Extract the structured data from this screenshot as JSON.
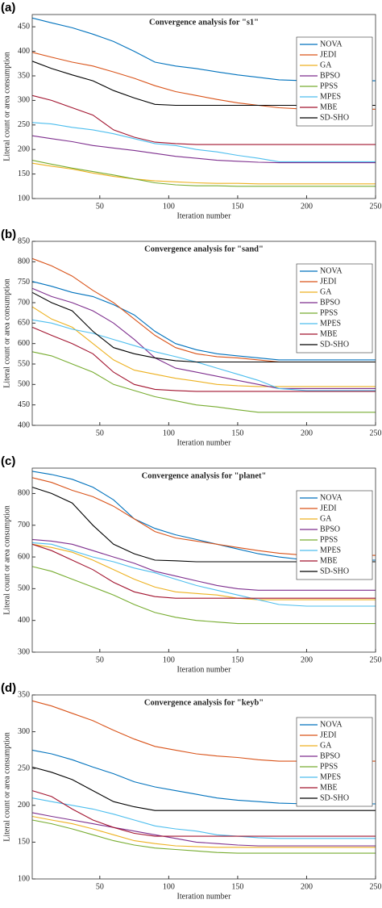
{
  "chart_data": [
    {
      "type": "line",
      "label": "(a)",
      "title": "Convergence analysis for \"s1\"",
      "xlabel": "Iteration number",
      "ylabel": "Literal count or area consumption",
      "x": [
        1,
        15,
        30,
        45,
        60,
        75,
        90,
        105,
        120,
        135,
        150,
        165,
        180,
        200,
        225,
        250
      ],
      "xlim": [
        1,
        250
      ],
      "xticks": [
        50,
        100,
        150,
        200,
        250
      ],
      "ylim": [
        100,
        475
      ],
      "yticks": [
        100,
        150,
        200,
        250,
        300,
        350,
        400,
        450
      ],
      "legend": "upper right",
      "series": [
        {
          "name": "NOVA",
          "color": "#0072BD",
          "values": [
            468,
            458,
            448,
            435,
            420,
            400,
            378,
            370,
            365,
            358,
            352,
            347,
            342,
            340,
            340,
            340
          ]
        },
        {
          "name": "JEDI",
          "color": "#D95319",
          "values": [
            398,
            388,
            378,
            370,
            358,
            345,
            330,
            318,
            310,
            302,
            295,
            290,
            285,
            282,
            282,
            282
          ]
        },
        {
          "name": "GA",
          "color": "#EDB120",
          "values": [
            172,
            166,
            160,
            152,
            145,
            140,
            136,
            134,
            132,
            131,
            131,
            130,
            130,
            130,
            130,
            130
          ]
        },
        {
          "name": "BPSO",
          "color": "#7E2F8E",
          "values": [
            228,
            222,
            216,
            208,
            203,
            198,
            192,
            186,
            182,
            178,
            176,
            174,
            173,
            173,
            173,
            173
          ]
        },
        {
          "name": "PPSS",
          "color": "#77AC30",
          "values": [
            178,
            170,
            162,
            155,
            148,
            140,
            132,
            128,
            126,
            126,
            125,
            125,
            125,
            125,
            125,
            125
          ]
        },
        {
          "name": "MPES",
          "color": "#4DBEEE",
          "values": [
            255,
            252,
            245,
            240,
            232,
            222,
            212,
            208,
            200,
            195,
            188,
            182,
            175,
            175,
            175,
            175
          ]
        },
        {
          "name": "MBE",
          "color": "#A2142F",
          "values": [
            310,
            300,
            285,
            270,
            240,
            225,
            215,
            212,
            210,
            210,
            210,
            210,
            210,
            210,
            210,
            210
          ]
        },
        {
          "name": "SD-SHO",
          "color": "#000000",
          "values": [
            380,
            365,
            352,
            340,
            320,
            305,
            292,
            290,
            290,
            290,
            290,
            290,
            290,
            290,
            290,
            290
          ]
        }
      ]
    },
    {
      "type": "line",
      "label": "(b)",
      "title": "Convergence analysis for \"sand\"",
      "xlabel": "Iteration number",
      "ylabel": "Literal count or area consumption",
      "x": [
        1,
        15,
        30,
        45,
        60,
        75,
        90,
        105,
        120,
        135,
        150,
        165,
        180,
        200,
        225,
        250
      ],
      "xlim": [
        1,
        250
      ],
      "xticks": [
        50,
        100,
        150,
        200,
        250
      ],
      "ylim": [
        400,
        850
      ],
      "yticks": [
        400,
        450,
        500,
        550,
        600,
        650,
        700,
        750,
        800,
        850
      ],
      "legend": "upper right",
      "series": [
        {
          "name": "NOVA",
          "color": "#0072BD",
          "values": [
            752,
            740,
            725,
            715,
            695,
            670,
            630,
            600,
            585,
            575,
            570,
            565,
            560,
            560,
            560,
            560
          ]
        },
        {
          "name": "JEDI",
          "color": "#D95319",
          "values": [
            808,
            790,
            765,
            730,
            700,
            660,
            620,
            590,
            575,
            568,
            565,
            560,
            555,
            555,
            555,
            555
          ]
        },
        {
          "name": "GA",
          "color": "#EDB120",
          "values": [
            690,
            660,
            640,
            600,
            560,
            535,
            525,
            515,
            508,
            500,
            497,
            495,
            495,
            495,
            495,
            495
          ]
        },
        {
          "name": "BPSO",
          "color": "#7E2F8E",
          "values": [
            735,
            715,
            700,
            680,
            650,
            610,
            565,
            540,
            530,
            520,
            510,
            500,
            490,
            490,
            490,
            490
          ]
        },
        {
          "name": "PPSS",
          "color": "#77AC30",
          "values": [
            580,
            570,
            550,
            530,
            500,
            485,
            470,
            460,
            450,
            445,
            438,
            432,
            432,
            432,
            432,
            432
          ]
        },
        {
          "name": "MPES",
          "color": "#4DBEEE",
          "values": [
            658,
            650,
            635,
            625,
            610,
            595,
            580,
            568,
            555,
            540,
            525,
            510,
            490,
            485,
            485,
            485
          ]
        },
        {
          "name": "MBE",
          "color": "#A2142F",
          "values": [
            640,
            620,
            600,
            575,
            530,
            500,
            488,
            485,
            483,
            483,
            483,
            483,
            483,
            483,
            483,
            483
          ]
        },
        {
          "name": "SD-SHO",
          "color": "#000000",
          "values": [
            725,
            700,
            680,
            630,
            590,
            575,
            565,
            558,
            555,
            555,
            555,
            555,
            555,
            555,
            555,
            555
          ]
        }
      ]
    },
    {
      "type": "line",
      "label": "(c)",
      "title": "Convergence analysis for \"planet\"",
      "xlabel": "Iteration number",
      "ylabel": "Literal count or area consumption",
      "x": [
        1,
        15,
        30,
        45,
        60,
        75,
        90,
        105,
        120,
        135,
        150,
        165,
        180,
        200,
        225,
        250
      ],
      "xlim": [
        1,
        250
      ],
      "xticks": [
        50,
        100,
        150,
        200,
        250
      ],
      "ylim": [
        300,
        880
      ],
      "yticks": [
        300,
        400,
        500,
        600,
        700,
        800
      ],
      "legend": "upper right",
      "series": [
        {
          "name": "NOVA",
          "color": "#0072BD",
          "values": [
            870,
            860,
            845,
            820,
            780,
            720,
            690,
            670,
            655,
            640,
            625,
            610,
            600,
            590,
            590,
            590
          ]
        },
        {
          "name": "JEDI",
          "color": "#D95319",
          "values": [
            850,
            835,
            810,
            790,
            760,
            720,
            680,
            660,
            650,
            640,
            630,
            620,
            612,
            605,
            605,
            605
          ]
        },
        {
          "name": "GA",
          "color": "#EDB120",
          "values": [
            640,
            630,
            615,
            590,
            560,
            530,
            505,
            490,
            485,
            480,
            470,
            465,
            465,
            465,
            465,
            465
          ]
        },
        {
          "name": "BPSO",
          "color": "#7E2F8E",
          "values": [
            655,
            650,
            640,
            620,
            600,
            580,
            555,
            540,
            525,
            510,
            500,
            495,
            495,
            495,
            495,
            495
          ]
        },
        {
          "name": "PPSS",
          "color": "#77AC30",
          "values": [
            570,
            555,
            530,
            505,
            480,
            450,
            425,
            410,
            400,
            395,
            390,
            390,
            390,
            390,
            390,
            390
          ]
        },
        {
          "name": "MPES",
          "color": "#4DBEEE",
          "values": [
            645,
            640,
            620,
            600,
            585,
            565,
            550,
            530,
            510,
            495,
            480,
            465,
            450,
            445,
            445,
            445
          ]
        },
        {
          "name": "MBE",
          "color": "#A2142F",
          "values": [
            640,
            620,
            590,
            560,
            520,
            490,
            475,
            470,
            470,
            470,
            470,
            470,
            470,
            470,
            470,
            470
          ]
        },
        {
          "name": "SD-SHO",
          "color": "#000000",
          "values": [
            820,
            800,
            770,
            700,
            640,
            610,
            590,
            588,
            585,
            585,
            585,
            585,
            585,
            585,
            585,
            585
          ]
        }
      ]
    },
    {
      "type": "line",
      "label": "(d)",
      "title": "Convergence analysis for \"keyb\"",
      "xlabel": "Iteration number",
      "ylabel": "Literal count or area consumption",
      "x": [
        1,
        15,
        30,
        45,
        60,
        75,
        90,
        105,
        120,
        135,
        150,
        165,
        180,
        200,
        225,
        250
      ],
      "xlim": [
        1,
        250
      ],
      "xticks": [
        50,
        100,
        150,
        200,
        250
      ],
      "ylim": [
        100,
        350
      ],
      "yticks": [
        100,
        150,
        200,
        250,
        300,
        350
      ],
      "legend": "upper right",
      "series": [
        {
          "name": "NOVA",
          "color": "#0072BD",
          "values": [
            275,
            270,
            262,
            252,
            243,
            232,
            225,
            220,
            215,
            210,
            207,
            205,
            203,
            202,
            202,
            202
          ]
        },
        {
          "name": "JEDI",
          "color": "#D95319",
          "values": [
            342,
            335,
            325,
            315,
            302,
            290,
            280,
            275,
            270,
            267,
            265,
            262,
            260,
            260,
            260,
            260
          ]
        },
        {
          "name": "GA",
          "color": "#EDB120",
          "values": [
            185,
            180,
            175,
            168,
            160,
            152,
            148,
            145,
            144,
            143,
            143,
            143,
            143,
            143,
            143,
            143
          ]
        },
        {
          "name": "BPSO",
          "color": "#7E2F8E",
          "values": [
            190,
            185,
            180,
            175,
            170,
            165,
            160,
            155,
            150,
            148,
            146,
            145,
            145,
            145,
            145,
            145
          ]
        },
        {
          "name": "PPSS",
          "color": "#77AC30",
          "values": [
            180,
            175,
            168,
            160,
            152,
            146,
            142,
            140,
            138,
            136,
            135,
            135,
            135,
            135,
            135,
            135
          ]
        },
        {
          "name": "MPES",
          "color": "#4DBEEE",
          "values": [
            210,
            205,
            200,
            195,
            188,
            180,
            172,
            168,
            165,
            160,
            158,
            156,
            155,
            155,
            155,
            155
          ]
        },
        {
          "name": "MBE",
          "color": "#A2142F",
          "values": [
            220,
            212,
            195,
            180,
            170,
            162,
            158,
            158,
            158,
            158,
            158,
            158,
            158,
            158,
            158,
            158
          ]
        },
        {
          "name": "SD-SHO",
          "color": "#000000",
          "values": [
            252,
            245,
            235,
            220,
            205,
            198,
            193,
            193,
            193,
            193,
            193,
            193,
            193,
            193,
            193,
            193
          ]
        }
      ]
    }
  ]
}
